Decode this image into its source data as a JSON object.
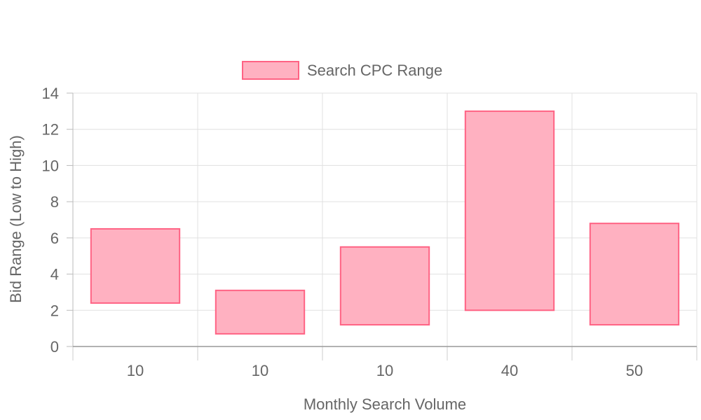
{
  "chart_data": {
    "type": "bar",
    "subtype": "floating-range",
    "categories": [
      "10",
      "10",
      "10",
      "40",
      "50"
    ],
    "series": [
      {
        "name": "Search CPC Range",
        "ranges": [
          [
            2.4,
            6.5
          ],
          [
            0.7,
            3.1
          ],
          [
            1.2,
            5.5
          ],
          [
            2.0,
            13.0
          ],
          [
            1.2,
            6.8
          ]
        ],
        "fill": "#ffb1c1",
        "stroke": "#ff6384"
      }
    ],
    "xlabel": "Monthly Search Volume",
    "ylabel": "Bid Range (Low to High)",
    "ylim": [
      0,
      14
    ],
    "yticks": [
      0,
      2,
      4,
      6,
      8,
      10,
      12,
      14
    ],
    "grid": true,
    "legend_position": "top"
  }
}
